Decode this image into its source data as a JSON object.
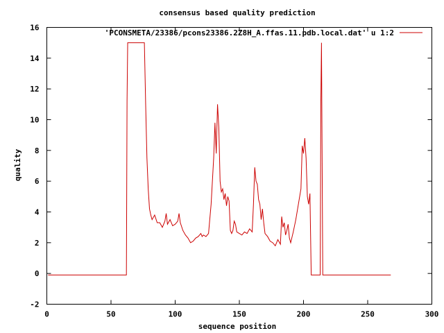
{
  "chart_data": {
    "type": "line",
    "title": "consensus based quality prediction",
    "xlabel": "sequence position",
    "ylabel": "quality",
    "xlim": [
      0,
      300
    ],
    "ylim": [
      -2,
      16
    ],
    "xticks": [
      0,
      50,
      100,
      150,
      200,
      250,
      300
    ],
    "yticks": [
      -2,
      0,
      2,
      4,
      6,
      8,
      10,
      12,
      14,
      16
    ],
    "grid": false,
    "legend_position": "top-right",
    "series": [
      {
        "name": "'PCONSMETA/23386/pcons23386.2Z8H_A.ffas.11.pdb.local.dat' u 1:2",
        "color": "#cc0000",
        "x": [
          1,
          62,
          62.5,
          63,
          64,
          76,
          77,
          78,
          79,
          80,
          81,
          82,
          84,
          86,
          88,
          90,
          92,
          93,
          94,
          96,
          98,
          100,
          102,
          103,
          104,
          106,
          108,
          110,
          112,
          114,
          116,
          118,
          120,
          121,
          122,
          124,
          126,
          128,
          130,
          131,
          132,
          133,
          134,
          135,
          136,
          137,
          138,
          139,
          140,
          141,
          142,
          143,
          144,
          145,
          146,
          147,
          148,
          150,
          152,
          154,
          156,
          158,
          160,
          161,
          162,
          163,
          164,
          165,
          166,
          167,
          168,
          169,
          170,
          172,
          174,
          176,
          178,
          180,
          182,
          183,
          184,
          185,
          186,
          187,
          188,
          189,
          190,
          192,
          194,
          196,
          198,
          199,
          200,
          201,
          202,
          203,
          204,
          205,
          206,
          207,
          213,
          213.5,
          214,
          215,
          268
        ],
        "values": [
          -0.1,
          -0.1,
          11.2,
          15,
          15,
          15,
          11,
          7.5,
          5.5,
          4.2,
          3.8,
          3.5,
          3.8,
          3.3,
          3.3,
          3.0,
          3.4,
          3.9,
          3.2,
          3.5,
          3.1,
          3.2,
          3.4,
          3.9,
          3.3,
          2.8,
          2.5,
          2.3,
          2.0,
          2.1,
          2.3,
          2.4,
          2.6,
          2.4,
          2.5,
          2.4,
          2.6,
          4.5,
          7.5,
          9.8,
          7.8,
          11.0,
          9.5,
          6.0,
          5.3,
          5.5,
          4.8,
          5.2,
          4.4,
          5.0,
          4.7,
          2.8,
          2.6,
          2.8,
          3.4,
          3.2,
          2.7,
          2.6,
          2.5,
          2.7,
          2.6,
          2.9,
          2.7,
          4.5,
          6.9,
          6.0,
          5.8,
          4.8,
          4.5,
          3.5,
          4.2,
          3.3,
          2.6,
          2.4,
          2.1,
          2.0,
          1.8,
          2.2,
          1.9,
          3.7,
          3.0,
          3.3,
          2.5,
          2.8,
          3.2,
          2.3,
          2.0,
          2.7,
          3.5,
          4.5,
          5.5,
          8.3,
          7.8,
          8.8,
          7.5,
          5.0,
          4.5,
          5.2,
          -0.1,
          -0.1,
          -0.1,
          11.2,
          15,
          -0.1,
          -0.1
        ]
      }
    ]
  }
}
